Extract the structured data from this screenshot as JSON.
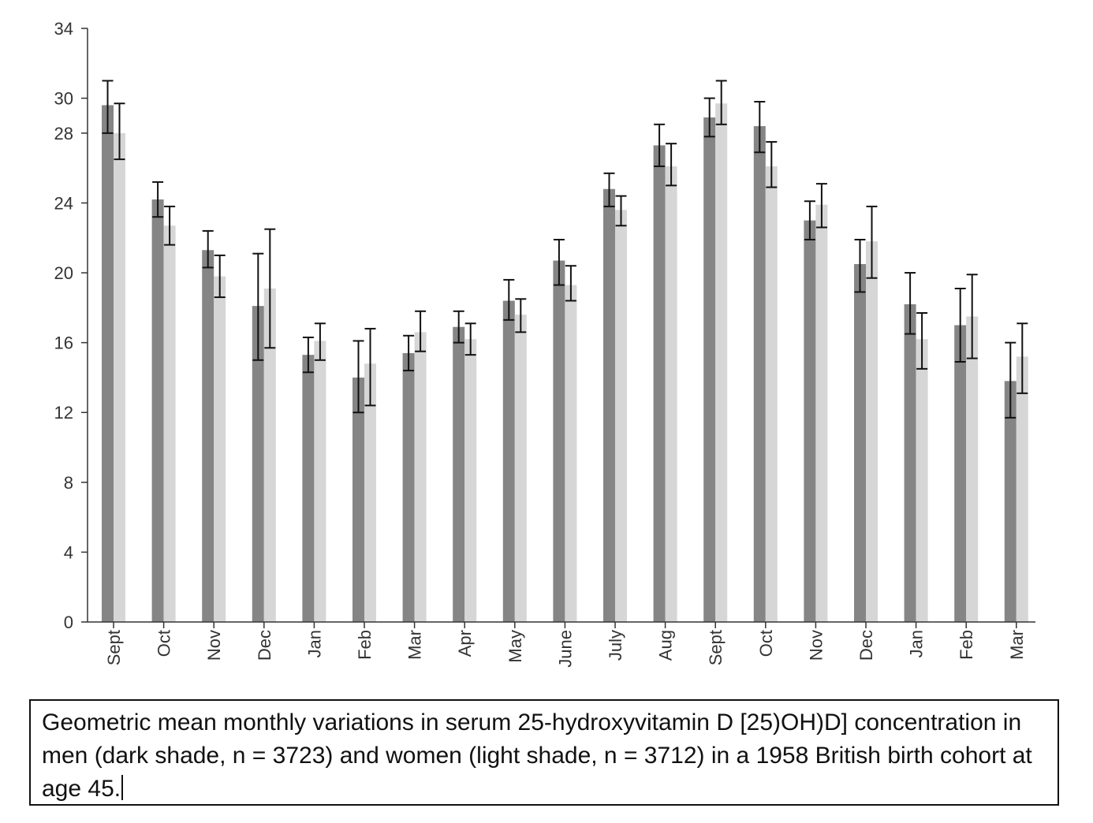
{
  "chart_data": {
    "type": "bar",
    "title": "",
    "xlabel": "",
    "ylabel": "",
    "ylim": [
      0,
      34
    ],
    "yticks": [
      0,
      4,
      8,
      12,
      16,
      20,
      24,
      28,
      30,
      34
    ],
    "grid": false,
    "legend": "none",
    "categories": [
      "Sept",
      "Oct",
      "Nov",
      "Dec",
      "Jan",
      "Feb",
      "Mar",
      "Apr",
      "May",
      "June",
      "July",
      "Aug",
      "Sept",
      "Oct",
      "Nov",
      "Dec",
      "Jan",
      "Feb",
      "Mar"
    ],
    "series": [
      {
        "color": "#858585",
        "values": [
          29.6,
          24.2,
          21.3,
          18.1,
          15.3,
          14.0,
          15.4,
          16.9,
          18.4,
          20.7,
          24.8,
          27.3,
          28.9,
          28.4,
          23.0,
          20.5,
          18.2,
          17.0,
          13.8
        ],
        "err_low": [
          28.0,
          23.2,
          20.3,
          15.0,
          14.3,
          12.0,
          14.4,
          16.0,
          17.3,
          19.3,
          23.8,
          26.1,
          27.8,
          26.9,
          21.9,
          18.9,
          16.5,
          14.9,
          11.7
        ],
        "err_high": [
          31.0,
          25.2,
          22.4,
          21.1,
          16.3,
          16.1,
          16.4,
          17.8,
          19.6,
          21.9,
          25.7,
          28.5,
          30.0,
          29.8,
          24.1,
          21.9,
          20.0,
          19.1,
          16.0
        ]
      },
      {
        "color": "#d6d6d6",
        "values": [
          28.0,
          22.7,
          19.8,
          19.1,
          16.1,
          14.8,
          16.6,
          16.2,
          17.6,
          19.3,
          23.6,
          26.1,
          29.7,
          26.1,
          23.9,
          21.8,
          16.2,
          17.5,
          15.2
        ],
        "err_low": [
          26.5,
          21.6,
          18.6,
          15.7,
          15.0,
          12.4,
          15.5,
          15.3,
          16.6,
          18.4,
          22.7,
          25.0,
          28.5,
          24.9,
          22.6,
          19.7,
          14.5,
          15.1,
          13.1
        ],
        "err_high": [
          29.7,
          23.8,
          21.0,
          22.5,
          17.1,
          16.8,
          17.8,
          17.1,
          18.5,
          20.4,
          24.4,
          27.4,
          31.0,
          27.5,
          25.1,
          23.8,
          17.7,
          19.9,
          17.1
        ]
      }
    ],
    "error_bar_color": "#111111",
    "axis_color": "#333333"
  },
  "caption": "Geometric mean monthly variations in serum 25-hydroxyvitamin D [25)OH)D] concentration in men (dark shade, n = 3723) and women (light shade, n = 3712) in a 1958 British birth cohort at age 45."
}
